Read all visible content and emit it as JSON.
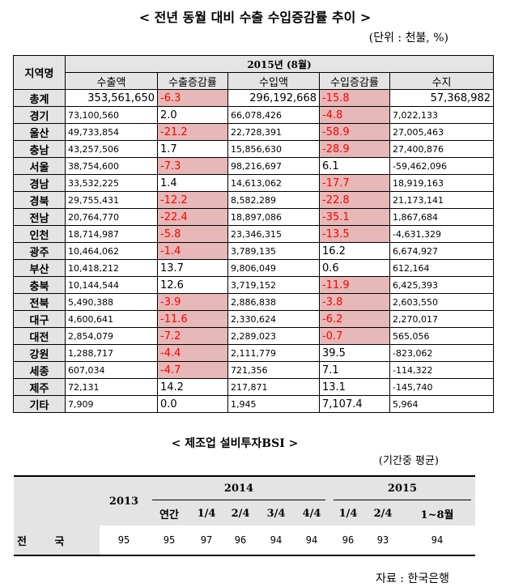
{
  "export_table": {
    "title": "< 전년 동월 대비 수출 수입증감률 추이 >",
    "unit": "(단위 : 천불, %)",
    "header_region": "지역명",
    "header_period": "2015년   (8월)",
    "columns": [
      "수출액",
      "수출증감률",
      "수입액",
      "수입증감률",
      "수지"
    ],
    "rows": [
      {
        "name": "총계",
        "export": "353,561,650",
        "export_rate": "-6.3",
        "import": "296,192,668",
        "import_rate": "-15.8",
        "balance": "57,368,982"
      },
      {
        "name": "경기",
        "export": "73,100,560",
        "export_rate": "2.0",
        "import": "66,078,426",
        "import_rate": "-4.8",
        "balance": "7,022,133"
      },
      {
        "name": "울산",
        "export": "49,733,854",
        "export_rate": "-21.2",
        "import": "22,728,391",
        "import_rate": "-58.9",
        "balance": "27,005,463"
      },
      {
        "name": "충남",
        "export": "43,257,506",
        "export_rate": "1.7",
        "import": "15,856,630",
        "import_rate": "-28.9",
        "balance": "27,400,876"
      },
      {
        "name": "서울",
        "export": "38,754,600",
        "export_rate": "-7.3",
        "import": "98,216,697",
        "import_rate": "6.1",
        "balance": "-59,462,096"
      },
      {
        "name": "경남",
        "export": "33,532,225",
        "export_rate": "1.4",
        "import": "14,613,062",
        "import_rate": "-17.7",
        "balance": "18,919,163"
      },
      {
        "name": "경북",
        "export": "29,755,431",
        "export_rate": "-12.2",
        "import": "8,582,289",
        "import_rate": "-22.8",
        "balance": "21,173,141"
      },
      {
        "name": "전남",
        "export": "20,764,770",
        "export_rate": "-22.4",
        "import": "18,897,086",
        "import_rate": "-35.1",
        "balance": "1,867,684"
      },
      {
        "name": "인천",
        "export": "18,714,987",
        "export_rate": "-5.8",
        "import": "23,346,315",
        "import_rate": "-13.5",
        "balance": "-4,631,329"
      },
      {
        "name": "광주",
        "export": "10,464,062",
        "export_rate": "-1.4",
        "import": "3,789,135",
        "import_rate": "16.2",
        "balance": "6,674,927"
      },
      {
        "name": "부산",
        "export": "10,418,212",
        "export_rate": "13.7",
        "import": "9,806,049",
        "import_rate": "0.6",
        "balance": "612,164"
      },
      {
        "name": "충북",
        "export": "10,144,544",
        "export_rate": "12.6",
        "import": "3,719,152",
        "import_rate": "-11.9",
        "balance": "6,425,393"
      },
      {
        "name": "전북",
        "export": "5,490,388",
        "export_rate": "-3.9",
        "import": "2,886,838",
        "import_rate": "-3.8",
        "balance": "2,603,550"
      },
      {
        "name": "대구",
        "export": "4,600,641",
        "export_rate": "-11.6",
        "import": "2,330,624",
        "import_rate": "-6.2",
        "balance": "2,270,017"
      },
      {
        "name": "대전",
        "export": "2,854,079",
        "export_rate": "-7.2",
        "import": "2,289,023",
        "import_rate": "-0.7",
        "balance": "565,056"
      },
      {
        "name": "강원",
        "export": "1,288,717",
        "export_rate": "-4.4",
        "import": "2,111,779",
        "import_rate": "39.5",
        "balance": "-823,062"
      },
      {
        "name": "세종",
        "export": "607,034",
        "export_rate": "-4.7",
        "import": "721,356",
        "import_rate": "7.1",
        "balance": "-114,322"
      },
      {
        "name": "제주",
        "export": "72,131",
        "export_rate": "14.2",
        "import": "217,871",
        "import_rate": "13.1",
        "balance": "-145,740"
      },
      {
        "name": "기타",
        "export": "7,909",
        "export_rate": "0.0",
        "import": "1,945",
        "import_rate": "7,107.4",
        "balance": "5,964"
      }
    ]
  },
  "bsi_table": {
    "title": "< 제조업 설비투자BSI >",
    "unit": "(기간중 평균)",
    "year_2013": "2013",
    "year_2014": "2014",
    "year_2015": "2015",
    "sub_2014": [
      "연간",
      "1/4",
      "2/4",
      "3/4",
      "4/4"
    ],
    "sub_2015": [
      "1/4",
      "2/4",
      "1~8월"
    ],
    "row_label": "전 국",
    "values": [
      "95",
      "95",
      "97",
      "96",
      "94",
      "94",
      "96",
      "93",
      "94"
    ]
  },
  "source": "자료 : 한국은행",
  "colors": {
    "negative_bg": "#e6b8b7",
    "negative_text": "#ff0000",
    "header_bg": "#e4e4e4"
  }
}
